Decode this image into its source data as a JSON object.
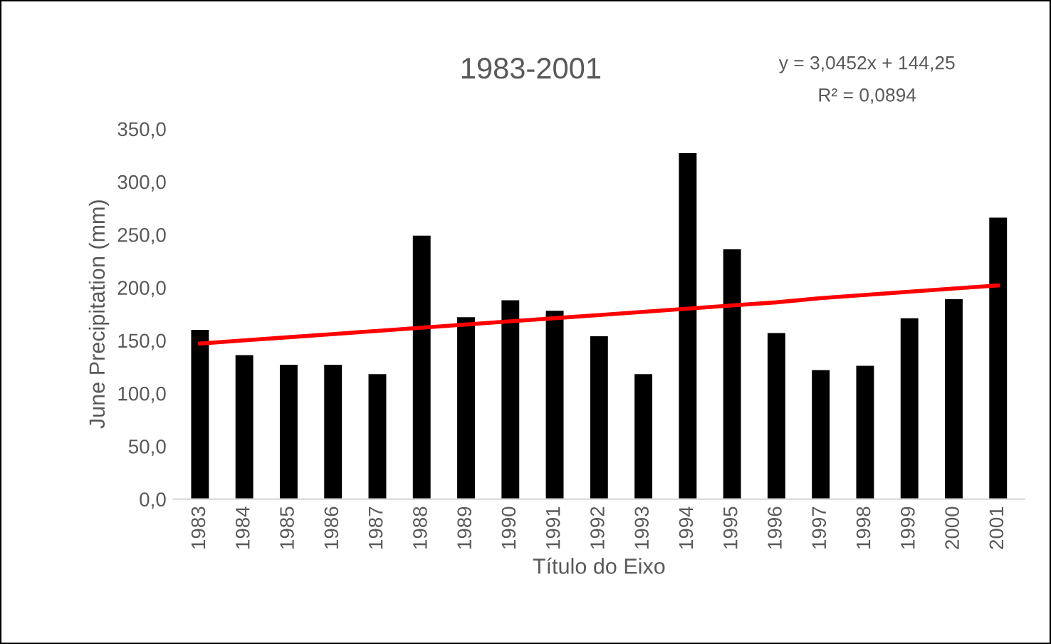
{
  "chart_data": {
    "type": "bar",
    "title": "1983-2001",
    "xlabel": "Título do Eixo",
    "ylabel": "June Precipitation (mm)",
    "categories": [
      "1983",
      "1984",
      "1985",
      "1986",
      "1987",
      "1988",
      "1989",
      "1990",
      "1991",
      "1992",
      "1993",
      "1994",
      "1995",
      "1996",
      "1997",
      "1998",
      "1999",
      "2000",
      "2001"
    ],
    "series": [
      {
        "color": "#000000",
        "values": [
          160,
          136,
          127,
          127,
          118,
          249,
          172,
          188,
          178,
          154,
          118,
          327,
          236,
          157,
          122,
          126,
          171,
          189,
          266
        ]
      },
      {
        "type": "line",
        "color": "#ff0000",
        "values": [
          147,
          150,
          153,
          156,
          159,
          162,
          165,
          168,
          171,
          174,
          177,
          180,
          183,
          186,
          190,
          193,
          196,
          199,
          202
        ]
      }
    ],
    "ylim": [
      0,
      350
    ],
    "yticks": [
      {
        "value": 0,
        "label": "0,0"
      },
      {
        "value": 50,
        "label": "50,0"
      },
      {
        "value": 100,
        "label": "100,0"
      },
      {
        "value": 150,
        "label": "150,0"
      },
      {
        "value": 200,
        "label": "200,0"
      },
      {
        "value": 250,
        "label": "250,0"
      },
      {
        "value": 300,
        "label": "300,0"
      },
      {
        "value": 350,
        "label": "350,0"
      }
    ],
    "annotations": [
      "y = 3,0452x + 144,25",
      "R² = 0,0894"
    ],
    "grid": false,
    "legend": false
  }
}
